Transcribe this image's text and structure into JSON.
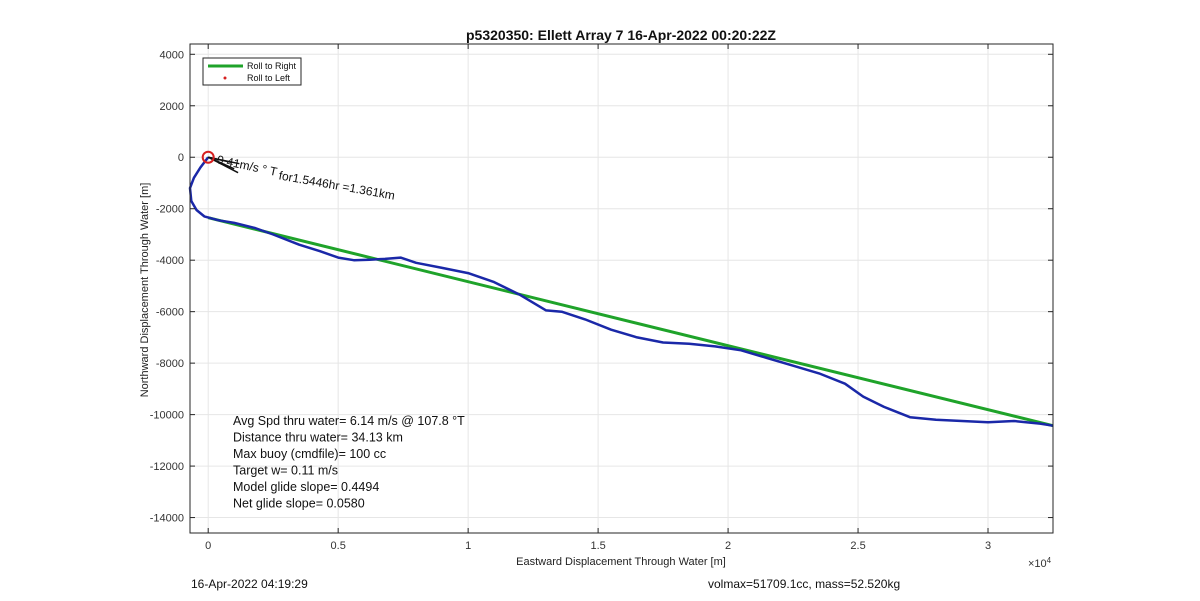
{
  "chart_data": {
    "type": "line",
    "title": "p5320350: Ellett Array 7 16-Apr-2022 00:20:22Z",
    "xlabel": "Eastward Displacement Through Water [m]",
    "ylabel": "Northward Displacement Through Water [m]",
    "x_exponent": "× 10^4",
    "x_exponent_base": "×10",
    "x_exponent_power": "4",
    "xlim": [
      -700,
      32500
    ],
    "ylim": [
      -14600,
      4400
    ],
    "xticks": [
      0,
      5000,
      10000,
      15000,
      20000,
      25000,
      30000
    ],
    "xtick_labels": [
      "0",
      "0.5",
      "1",
      "1.5",
      "2",
      "2.5",
      "3"
    ],
    "yticks": [
      4000,
      2000,
      0,
      -2000,
      -4000,
      -6000,
      -8000,
      -10000,
      -12000,
      -14000
    ],
    "ytick_labels": [
      "4000",
      "2000",
      "0",
      "-2000",
      "-4000",
      "-6000",
      "-8000",
      "-10000",
      "-12000",
      "-14000"
    ],
    "grid": true,
    "legend_position": "top-left",
    "legend": [
      {
        "label": "Roll to Right",
        "color": "#1fa32a",
        "style": "line"
      },
      {
        "label": "Roll to Left",
        "color": "#d62020",
        "style": "dot"
      }
    ],
    "series": [
      {
        "color": "#1fa32a",
        "x": [
          0,
          32500
        ],
        "y": [
          -2350,
          -10430
        ]
      },
      {
        "color": "#1a28a8",
        "x": [
          0,
          -300,
          -550,
          -700,
          -650,
          -450,
          -150,
          400,
          1000,
          1800,
          2500,
          3500,
          4300,
          5000,
          5600,
          6200,
          6800,
          7400,
          8000,
          9000,
          10000,
          11000,
          12000,
          13000,
          13600,
          14500,
          15500,
          16500,
          17500,
          18500,
          19500,
          20500,
          21500,
          22500,
          23500,
          24500,
          25200,
          26000,
          27000,
          28000,
          29000,
          30000,
          31000,
          32000,
          32500
        ],
        "y": [
          0,
          -400,
          -800,
          -1200,
          -1700,
          -2050,
          -2300,
          -2450,
          -2550,
          -2750,
          -3000,
          -3400,
          -3650,
          -3900,
          -4000,
          -3980,
          -3950,
          -3900,
          -4100,
          -4300,
          -4500,
          -4850,
          -5350,
          -5950,
          -6000,
          -6300,
          -6700,
          -7000,
          -7200,
          -7250,
          -7350,
          -7500,
          -7800,
          -8100,
          -8400,
          -8800,
          -9300,
          -9700,
          -10100,
          -10200,
          -10250,
          -10300,
          -10250,
          -10350,
          -10430
        ]
      }
    ],
    "annotations": {
      "start_marker": {
        "x": 0,
        "y": 0,
        "color": "#d62020"
      },
      "current_label": "for1.5446hr =1.361km",
      "current_overlap_label": "0.41m/s ° T",
      "current_vectors": [
        {
          "x0": 0,
          "y0": 0,
          "x1": 1200,
          "y1": -250
        },
        {
          "x0": 0,
          "y0": 0,
          "x1": 1000,
          "y1": -450
        },
        {
          "x0": 0,
          "y0": 0,
          "x1": 1150,
          "y1": -600
        },
        {
          "x0": 0,
          "y0": 0,
          "x1": 900,
          "y1": -200
        }
      ]
    },
    "stats": [
      "Avg Spd thru water=  6.14 m/s @ 107.8 °T",
      "Distance thru water= 34.13 km",
      "Max buoy (cmdfile)= 100 cc",
      "Target w= 0.11 m/s",
      "Model glide slope= 0.4494",
      "Net glide slope= 0.0580"
    ]
  },
  "footer": {
    "left": "16-Apr-2022 04:19:29",
    "right": "volmax=51709.1cc, mass=52.520kg"
  }
}
